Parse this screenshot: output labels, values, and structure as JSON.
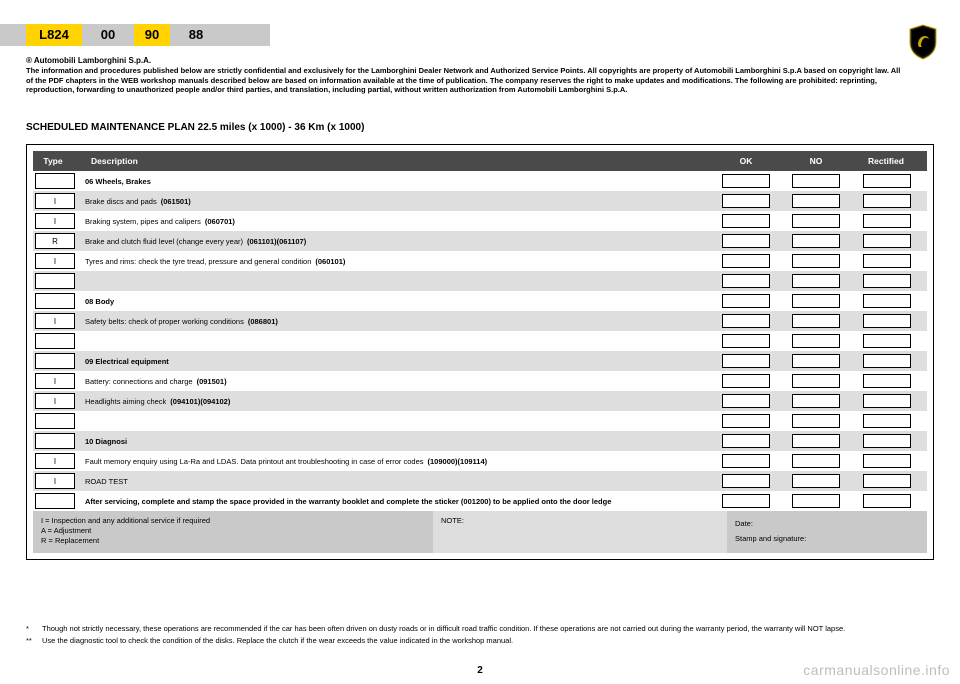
{
  "codes": {
    "main": "L824",
    "seg1": "00",
    "seg2": "90",
    "seg3": "88"
  },
  "disclaimer": {
    "title": "® Automobili Lamborghini S.p.A.",
    "body": "The information and procedures published below are strictly confidential and exclusively for the Lamborghini Dealer Network and Authorized Service Points. All copyrights are property of Automobili Lamborghini S.p.A based on copyright law. All of the PDF chapters in the WEB workshop manuals described below are based on information available at the time of publication. The company reserves the right to make updates and modifications. The following are prohibited: reprinting, reproduction, forwarding to unauthorized people and/or third parties, and translation, including partial, without written authorization from Automobili Lamborghini S.p.A."
  },
  "section_title": "SCHEDULED MAINTENANCE PLAN 22.5 miles (x 1000) - 36 Km (x 1000)",
  "table": {
    "headers": {
      "type": "Type",
      "desc": "Description",
      "ok": "OK",
      "no": "NO",
      "rect": "Rectified"
    },
    "rows": [
      {
        "type": "",
        "desc": "06 Wheels, Brakes",
        "bold": true,
        "code": "",
        "shade": "light"
      },
      {
        "type": "I",
        "desc": "Brake discs and pads",
        "code": "(061501)",
        "shade": "dark"
      },
      {
        "type": "I",
        "desc": "Braking system, pipes and calipers",
        "code": "(060701)",
        "shade": "light"
      },
      {
        "type": "R",
        "desc": "Brake and clutch fluid level (change every year)",
        "code": "(061101)(061107)",
        "shade": "dark"
      },
      {
        "type": "I",
        "desc": "Tyres and rims: check the tyre tread, pressure and general condition",
        "code": "(060101)",
        "shade": "light"
      },
      {
        "type": "",
        "desc": "",
        "code": "",
        "shade": "dark"
      },
      {
        "type": "",
        "desc": "08 Body",
        "bold": true,
        "code": "",
        "shade": "light"
      },
      {
        "type": "I",
        "desc": "Safety belts: check of proper working conditions",
        "code": "(086801)",
        "shade": "dark"
      },
      {
        "type": "",
        "desc": "",
        "code": "",
        "shade": "light"
      },
      {
        "type": "",
        "desc": "09 Electrical equipment",
        "bold": true,
        "code": "",
        "shade": "dark"
      },
      {
        "type": "I",
        "desc": "Battery: connections and charge",
        "code": "(091501)",
        "shade": "light"
      },
      {
        "type": "I",
        "desc": "Headlights aiming check",
        "code": "(094101)(094102)",
        "shade": "dark"
      },
      {
        "type": "",
        "desc": "",
        "code": "",
        "shade": "light"
      },
      {
        "type": "",
        "desc": "10 Diagnosi",
        "bold": true,
        "code": "",
        "shade": "dark"
      },
      {
        "type": "I",
        "desc": "Fault memory enquiry using La-Ra and LDAS. Data printout ant troubleshooting in case of error codes",
        "code": "(109000)(109114)",
        "shade": "light"
      },
      {
        "type": "I",
        "desc": "ROAD TEST",
        "code": "",
        "shade": "dark"
      },
      {
        "type": "",
        "desc": "After servicing, complete and stamp the space provided in the warranty booklet and complete the sticker (001200) to be applied onto the door ledge",
        "bold": true,
        "code": "",
        "shade": "light"
      }
    ],
    "legend": {
      "l1": "I = Inspection and any additional service if required",
      "l2": "A = Adjustment",
      "l3": "R = Replacement"
    },
    "note_label": "NOTE:",
    "date_label": "Date:",
    "stamp_label": "Stamp and signature:"
  },
  "footnotes": {
    "f1": "Though not strictly necessary, these operations are recommended if the car has been often driven on dusty roads or in difficult road traffic condition. If these operations are not carried out during the warranty period, the warranty will NOT lapse.",
    "f2": "Use the diagnostic tool to check the condition of the disks. Replace the clutch if the wear exceeds the value indicated in the workshop manual."
  },
  "page_number": "2",
  "watermark": "carmanualsonline.info",
  "colors": {
    "accent": "#ffd200",
    "header_bg": "#4a4a4a",
    "row_dark": "#dedede",
    "legend_bg": "#c9c9c9"
  }
}
